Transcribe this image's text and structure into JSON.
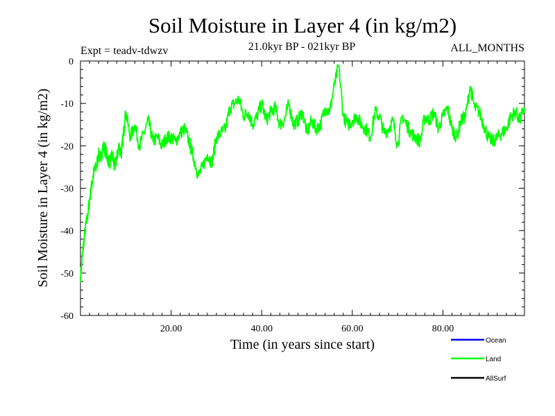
{
  "chart_data": {
    "type": "line",
    "title": "Soil Moisture in Layer 4 (in kg/m2)",
    "subtitle_left": "Expt = teadv-tdwzv",
    "subtitle_center": "21.0kyr BP - 021kyr BP",
    "subtitle_right": "ALL_MONTHS",
    "xlabel": "Time (in years since start)",
    "ylabel": "Soil Moisture in Layer 4 (in kg/m2)",
    "xlim": [
      0,
      98
    ],
    "ylim": [
      -60,
      0
    ],
    "x_ticks": [
      20,
      40,
      60,
      80
    ],
    "x_tick_labels": [
      "20.00",
      "40.00",
      "60.00",
      "80.00"
    ],
    "y_ticks": [
      0,
      -10,
      -20,
      -30,
      -40,
      -50,
      -60
    ],
    "y_tick_labels": [
      "0",
      "-10",
      "-20",
      "-30",
      "-40",
      "-50",
      "-60"
    ],
    "legend": [
      {
        "name": "Ocean",
        "color": "#0000ff"
      },
      {
        "name": "Land",
        "color": "#00ff00"
      },
      {
        "name": "AllSurf",
        "color": "#000000"
      }
    ],
    "series": [
      {
        "name": "Land",
        "color": "#00ff00",
        "x": [
          0,
          0.5,
          1,
          1.5,
          2,
          2.5,
          3,
          3.5,
          4,
          4.5,
          5,
          5.5,
          6,
          6.5,
          7,
          7.5,
          8,
          8.5,
          9,
          9.5,
          10,
          11,
          12,
          13,
          14,
          15,
          16,
          17,
          18,
          19,
          20,
          21,
          22,
          23,
          24,
          25,
          26,
          27,
          28,
          29,
          30,
          31,
          32,
          33,
          34,
          35,
          36,
          37,
          38,
          39,
          40,
          41,
          42,
          43,
          44,
          45,
          46,
          47,
          48,
          49,
          50,
          51,
          52,
          53,
          54,
          55,
          56,
          57,
          58,
          59,
          60,
          61,
          62,
          63,
          64,
          65,
          66,
          67,
          68,
          69,
          70,
          71,
          72,
          73,
          74,
          75,
          76,
          77,
          78,
          79,
          80,
          81,
          82,
          83,
          84,
          85,
          86,
          87,
          88,
          89,
          90,
          91,
          92,
          93,
          94,
          95,
          96,
          97,
          98
        ],
        "values": [
          -51,
          -45,
          -40,
          -37,
          -33,
          -29,
          -26,
          -25,
          -22,
          -23,
          -20,
          -21,
          -23,
          -24,
          -22,
          -25,
          -23,
          -20,
          -22,
          -17,
          -12,
          -18,
          -15,
          -20,
          -17,
          -14,
          -19,
          -18,
          -20,
          -18,
          -18,
          -19,
          -17,
          -16,
          -19,
          -23,
          -27,
          -25,
          -22,
          -24,
          -18,
          -17,
          -16,
          -11,
          -10,
          -9,
          -13,
          -12,
          -15,
          -13,
          -10,
          -14,
          -12,
          -11,
          -15,
          -14,
          -10,
          -15,
          -14,
          -12,
          -17,
          -14,
          -16,
          -15,
          -11,
          -12,
          -6,
          -1,
          -13,
          -15,
          -14,
          -13,
          -15,
          -16,
          -18,
          -12,
          -13,
          -17,
          -16,
          -14,
          -20,
          -13,
          -15,
          -17,
          -18,
          -19,
          -13,
          -14,
          -12,
          -16,
          -13,
          -11,
          -16,
          -18,
          -14,
          -13,
          -6,
          -11,
          -12,
          -15,
          -18,
          -19,
          -18,
          -17,
          -16,
          -13,
          -12,
          -14,
          -11
        ]
      }
    ]
  }
}
